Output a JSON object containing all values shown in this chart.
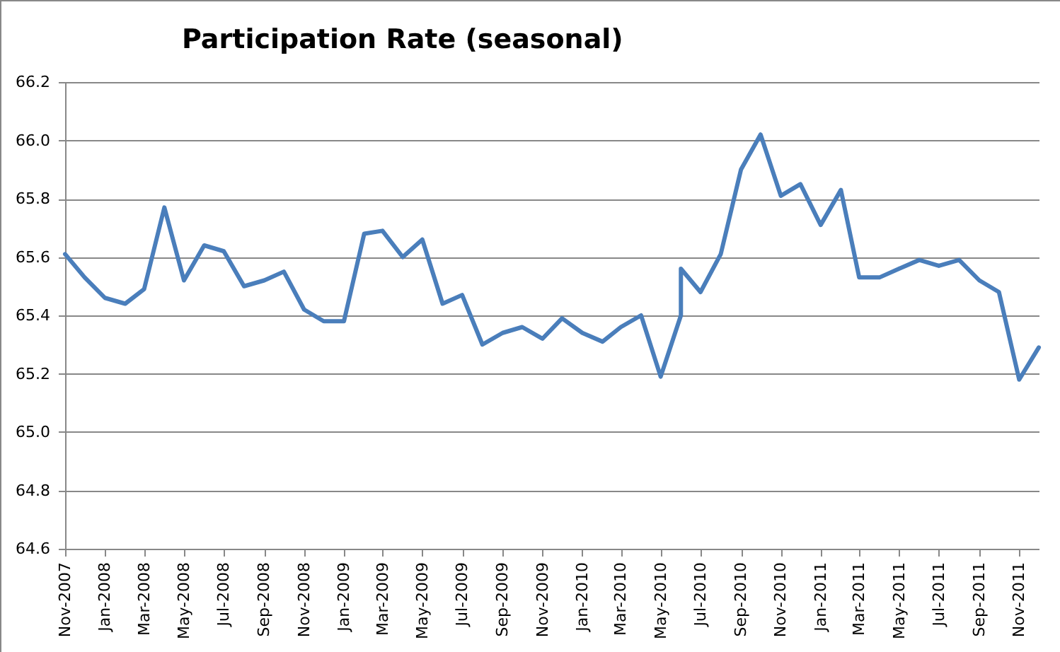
{
  "chart_data": {
    "type": "line",
    "title": "Participation Rate (seasonal)",
    "x": [
      "2007-11",
      "2007-12",
      "2008-01",
      "2008-02",
      "2008-03",
      "2008-04",
      "2008-05",
      "2008-06",
      "2008-07",
      "2008-08",
      "2008-09",
      "2008-10",
      "2008-11",
      "2008-12",
      "2009-01",
      "2009-02",
      "2009-03",
      "2009-04",
      "2009-05",
      "2009-06",
      "2009-07",
      "2009-08",
      "2009-09",
      "2009-10",
      "2009-11",
      "2009-12",
      "2010-01",
      "2010-02",
      "2010-03",
      "2010-04",
      "2010-05",
      "2010-06",
      "2010-06",
      "2010-07",
      "2010-08",
      "2010-09",
      "2010-10",
      "2010-11",
      "2010-12",
      "2011-01",
      "2011-02",
      "2011-03",
      "2011-04",
      "2011-05",
      "2011-06",
      "2011-07",
      "2011-08",
      "2011-09",
      "2011-10",
      "2011-11",
      "2011-12"
    ],
    "series": [
      {
        "color": "#4a7ebb",
        "values": [
          65.61,
          65.53,
          65.46,
          65.44,
          65.49,
          65.77,
          65.52,
          65.64,
          65.62,
          65.5,
          65.52,
          65.55,
          65.42,
          65.38,
          65.38,
          65.68,
          65.69,
          65.6,
          65.66,
          65.44,
          65.47,
          65.3,
          65.34,
          65.36,
          65.32,
          65.39,
          65.34,
          65.31,
          65.36,
          65.4,
          65.19,
          65.4,
          65.56,
          65.48,
          65.61,
          65.9,
          66.02,
          65.81,
          65.85,
          65.71,
          65.83,
          65.53,
          65.53,
          65.56,
          65.59,
          65.57,
          65.59,
          65.52,
          65.48,
          65.18,
          65.29
        ]
      }
    ],
    "xlim": [
      "2007-11",
      "2011-12"
    ],
    "xticks": [
      {
        "value": "2007-11",
        "label": "Nov-2007"
      },
      {
        "value": "2008-01",
        "label": "Jan-2008"
      },
      {
        "value": "2008-03",
        "label": "Mar-2008"
      },
      {
        "value": "2008-05",
        "label": "May-2008"
      },
      {
        "value": "2008-07",
        "label": "Jul-2008"
      },
      {
        "value": "2008-09",
        "label": "Sep-2008"
      },
      {
        "value": "2008-11",
        "label": "Nov-2008"
      },
      {
        "value": "2009-01",
        "label": "Jan-2009"
      },
      {
        "value": "2009-03",
        "label": "Mar-2009"
      },
      {
        "value": "2009-05",
        "label": "May-2009"
      },
      {
        "value": "2009-07",
        "label": "Jul-2009"
      },
      {
        "value": "2009-09",
        "label": "Sep-2009"
      },
      {
        "value": "2009-11",
        "label": "Nov-2009"
      },
      {
        "value": "2010-01",
        "label": "Jan-2010"
      },
      {
        "value": "2010-03",
        "label": "Mar-2010"
      },
      {
        "value": "2010-05",
        "label": "May-2010"
      },
      {
        "value": "2010-07",
        "label": "Jul-2010"
      },
      {
        "value": "2010-09",
        "label": "Sep-2010"
      },
      {
        "value": "2010-11",
        "label": "Nov-2010"
      },
      {
        "value": "2011-01",
        "label": "Jan-2011"
      },
      {
        "value": "2011-03",
        "label": "Mar-2011"
      },
      {
        "value": "2011-05",
        "label": "May-2011"
      },
      {
        "value": "2011-07",
        "label": "Jul-2011"
      },
      {
        "value": "2011-09",
        "label": "Sep-2011"
      },
      {
        "value": "2011-11",
        "label": "Nov-2011"
      }
    ],
    "ylim": [
      64.6,
      66.2
    ],
    "yticks": [
      64.6,
      64.8,
      {
        "value": 65,
        "label": "65.0"
      },
      65.2,
      65.4,
      65.6,
      65.8,
      {
        "value": 66,
        "label": "66.0"
      },
      66.2
    ],
    "grid": "y",
    "marker": "none",
    "line_style": "solid"
  }
}
